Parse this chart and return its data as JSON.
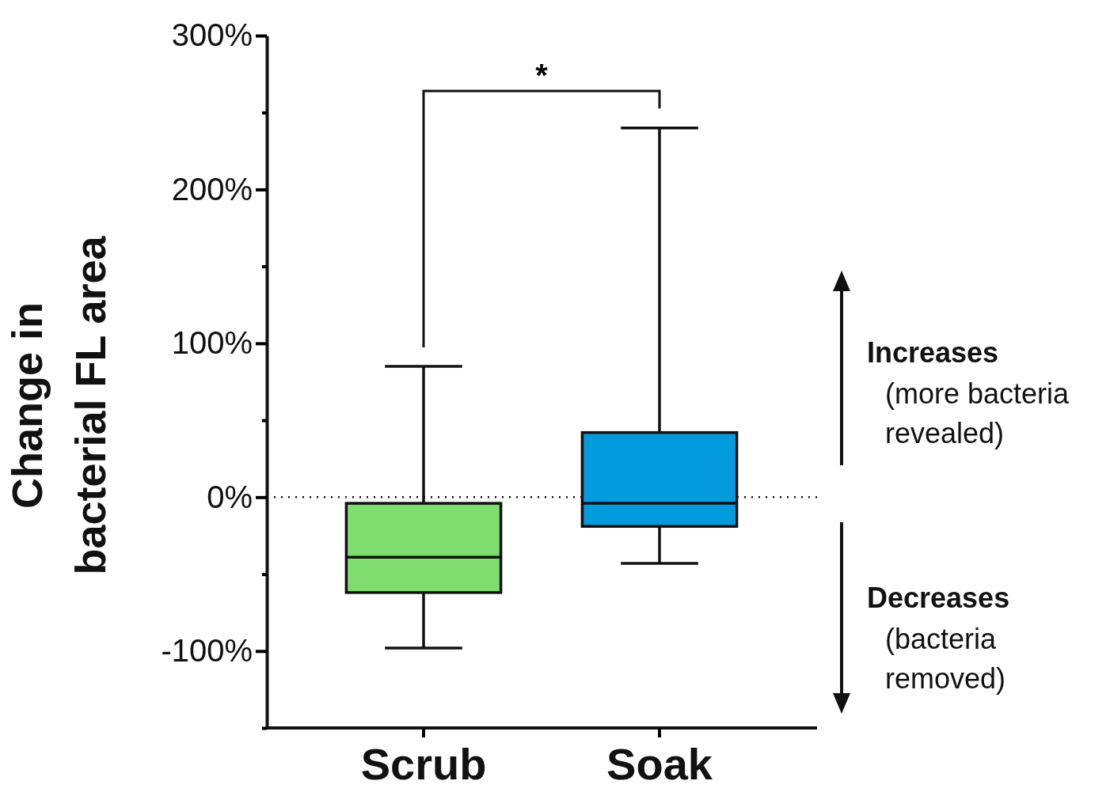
{
  "chart_data": {
    "type": "box",
    "ylabel": "Change in bacterial FL area",
    "categories": [
      "Scrub",
      "Soak"
    ],
    "colors": [
      "#7fdc6e",
      "#039ade"
    ],
    "boxes": [
      {
        "low": -98,
        "q1": -62,
        "median": -39,
        "q3": -4,
        "high": 85
      },
      {
        "low": -43,
        "q1": -19,
        "median": -4,
        "q3": 42,
        "high": 240
      }
    ],
    "ylim": [
      -150,
      300
    ],
    "yticks": [
      {
        "value": -150,
        "label": null
      },
      {
        "value": -100,
        "label": "-100%"
      },
      {
        "value": -50,
        "label": null
      },
      {
        "value": 0,
        "label": "0%"
      },
      {
        "value": 50,
        "label": null
      },
      {
        "value": 100,
        "label": "100%"
      },
      {
        "value": 150,
        "label": null
      },
      {
        "value": 200,
        "label": "200%"
      },
      {
        "value": 250,
        "label": null
      },
      {
        "value": 300,
        "label": "300%"
      }
    ],
    "ref_lines": [
      {
        "axis": "y",
        "value": 0,
        "label": null,
        "line_style": "dotted"
      }
    ],
    "grid": false,
    "annotations": [
      "*",
      "Increases",
      "(more bacteria revealed)",
      "Decreases",
      "(bacteria removed)"
    ]
  }
}
